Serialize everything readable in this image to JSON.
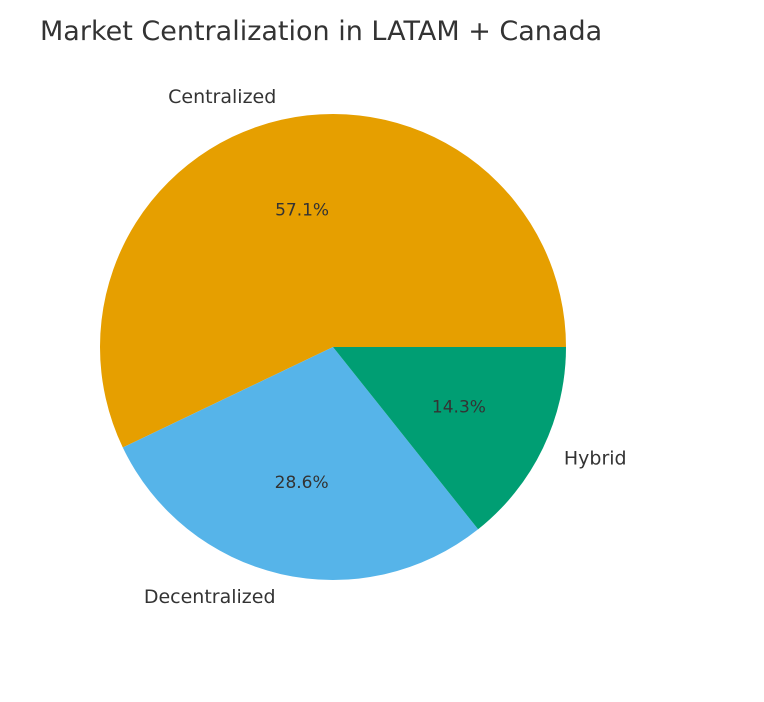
{
  "chart_data": {
    "type": "pie",
    "title": "Market Centralization in LATAM + Canada",
    "categories": [
      "Centralized",
      "Decentralized",
      "Hybrid"
    ],
    "values": [
      57.1,
      28.6,
      14.3
    ],
    "percent_labels": [
      "57.1%",
      "28.6%",
      "14.3%"
    ],
    "colors": [
      "#E69F00",
      "#56B4E9",
      "#009E73"
    ],
    "start_angle_deg": 0,
    "direction": "counterclockwise",
    "legend": "none"
  }
}
